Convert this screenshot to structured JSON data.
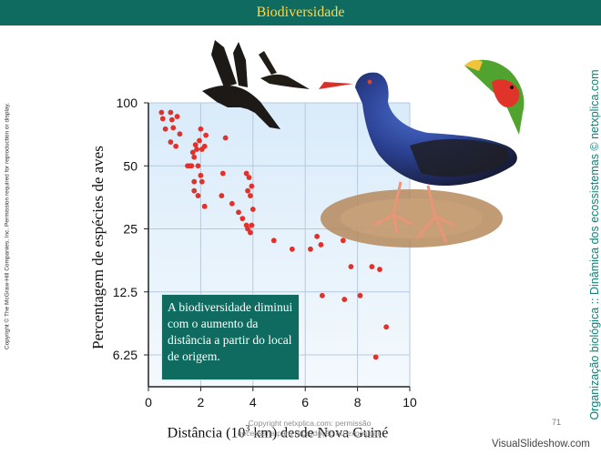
{
  "header": {
    "title": "Biodiversidade"
  },
  "sidebar_left": {
    "copyright": "Copyright © The McGraw-Hill Companies, Inc. Permission required for reproduction or display."
  },
  "sidebar_right": {
    "text": "Organização biológica :: Dinâmica dos ecossistemas © netxplica.com"
  },
  "chart_data": {
    "type": "scatter",
    "title": "",
    "xlabel": "Distância (10",
    "xlabel_sup": "3",
    "xlabel_rest": " km) desde Nova Guiné",
    "ylabel": "Percentagem de espécies de aves",
    "xlim": [
      0,
      10
    ],
    "ylim": [
      4.3,
      100
    ],
    "yscale": "log2",
    "xticks": [
      0,
      2,
      4,
      6,
      8,
      10
    ],
    "yticks": [
      6.25,
      12.5,
      25,
      50,
      100
    ],
    "ytick_labels": [
      "6.25",
      "12.5",
      "25",
      "50",
      "100"
    ],
    "grid": true,
    "series": [
      {
        "color": "#e0312b",
        "x": [
          0.5,
          0.55,
          0.65,
          0.85,
          0.9,
          0.95,
          1.1,
          1.05,
          0.85,
          1.2,
          1.5,
          1.6,
          1.75,
          1.7,
          1.85,
          1.8,
          1.65,
          1.75,
          2.0,
          1.95,
          2.05,
          2.15,
          1.9,
          2.0,
          1.75,
          2.2,
          1.9,
          2.05,
          2.15,
          2.95,
          2.85,
          2.8,
          3.2,
          3.45,
          3.6,
          3.75,
          3.85,
          3.8,
          3.95,
          3.9,
          4.0,
          3.75,
          3.8,
          3.95,
          3.9,
          4.8,
          5.5,
          6.2,
          6.45,
          6.6,
          6.65,
          7.5,
          7.45,
          7.75,
          8.1,
          8.55,
          8.85,
          9.1,
          8.7
        ],
        "y": [
          90,
          84,
          75,
          90,
          83,
          76,
          86,
          62,
          65,
          71,
          50,
          50,
          55,
          58,
          60,
          63,
          50,
          42,
          75,
          66,
          60,
          62,
          50,
          45,
          38,
          70,
          36,
          42,
          32,
          68,
          46,
          36,
          33,
          30,
          28,
          46,
          44,
          38,
          40,
          36,
          31,
          26,
          25,
          26,
          24,
          22,
          20,
          20,
          23,
          21,
          12,
          11.5,
          22,
          16.5,
          12,
          16.5,
          16,
          8.5,
          6.1
        ]
      }
    ],
    "callout": "A biodiversidade diminui com o aumento da distância a partir do local de origem."
  },
  "watermark": {
    "line1": "Copyright netxplica.com: permissão",
    "line2": "necessária para reprodução ou exposição"
  },
  "page_number": "71",
  "footer": {
    "site": "VisualSlideshow.com"
  },
  "colors": {
    "accent": "#0f6b5f",
    "title": "#ffd84a",
    "points": "#e0312b",
    "vertical_text": "#137e78"
  }
}
